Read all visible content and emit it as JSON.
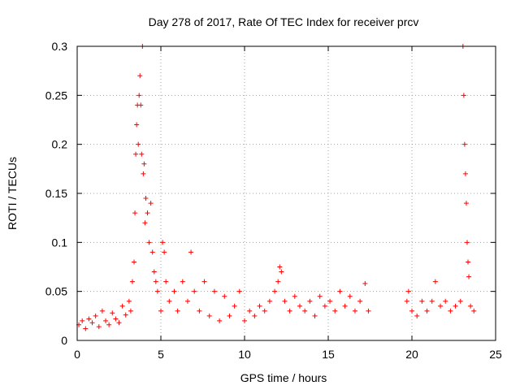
{
  "chart_data": {
    "type": "scatter",
    "title": "Day 278 of 2017, Rate Of TEC Index for receiver prcv",
    "xlabel": "GPS time / hours",
    "ylabel": "ROTI / TECUs",
    "xlim": [
      0,
      25
    ],
    "ylim": [
      0,
      0.3
    ],
    "xticks": [
      0,
      5,
      10,
      15,
      20,
      25
    ],
    "yticks": [
      0,
      0.05,
      0.1,
      0.15,
      0.2,
      0.25,
      0.3
    ],
    "xtick_labels": [
      "0",
      "5",
      "10",
      "15",
      "20",
      "25"
    ],
    "ytick_labels": [
      "0",
      "0.05",
      "0.1",
      "0.15",
      "0.2",
      "0.25",
      "0.3"
    ],
    "grid": true,
    "marker": "+",
    "color": "#ff0000",
    "series": [
      {
        "name": "ROTI",
        "points": [
          [
            0.1,
            0.016
          ],
          [
            0.3,
            0.02
          ],
          [
            0.5,
            0.012
          ],
          [
            0.7,
            0.022
          ],
          [
            0.9,
            0.018
          ],
          [
            1.1,
            0.025
          ],
          [
            1.3,
            0.014
          ],
          [
            1.5,
            0.03
          ],
          [
            1.7,
            0.02
          ],
          [
            1.9,
            0.016
          ],
          [
            2.1,
            0.028
          ],
          [
            2.3,
            0.022
          ],
          [
            2.5,
            0.018
          ],
          [
            2.7,
            0.035
          ],
          [
            2.9,
            0.026
          ],
          [
            3.1,
            0.04
          ],
          [
            3.2,
            0.03
          ],
          [
            3.3,
            0.06
          ],
          [
            3.4,
            0.08
          ],
          [
            3.45,
            0.13
          ],
          [
            3.5,
            0.19
          ],
          [
            3.55,
            0.22
          ],
          [
            3.6,
            0.24
          ],
          [
            3.65,
            0.2
          ],
          [
            3.7,
            0.25
          ],
          [
            3.75,
            0.27
          ],
          [
            3.8,
            0.24
          ],
          [
            3.85,
            0.19
          ],
          [
            3.9,
            0.3
          ],
          [
            3.95,
            0.17
          ],
          [
            4.0,
            0.18
          ],
          [
            4.05,
            0.12
          ],
          [
            4.1,
            0.145
          ],
          [
            4.2,
            0.13
          ],
          [
            4.3,
            0.1
          ],
          [
            4.4,
            0.14
          ],
          [
            4.5,
            0.09
          ],
          [
            4.6,
            0.07
          ],
          [
            4.7,
            0.06
          ],
          [
            4.8,
            0.05
          ],
          [
            5.0,
            0.03
          ],
          [
            5.1,
            0.1
          ],
          [
            5.2,
            0.09
          ],
          [
            5.3,
            0.06
          ],
          [
            5.5,
            0.04
          ],
          [
            5.8,
            0.05
          ],
          [
            6.0,
            0.03
          ],
          [
            6.3,
            0.06
          ],
          [
            6.6,
            0.04
          ],
          [
            6.8,
            0.09
          ],
          [
            7.0,
            0.05
          ],
          [
            7.3,
            0.03
          ],
          [
            7.6,
            0.06
          ],
          [
            7.9,
            0.025
          ],
          [
            8.2,
            0.05
          ],
          [
            8.5,
            0.02
          ],
          [
            8.8,
            0.045
          ],
          [
            9.1,
            0.025
          ],
          [
            9.4,
            0.035
          ],
          [
            9.7,
            0.05
          ],
          [
            10.0,
            0.02
          ],
          [
            10.3,
            0.03
          ],
          [
            10.6,
            0.025
          ],
          [
            10.9,
            0.035
          ],
          [
            11.2,
            0.03
          ],
          [
            11.5,
            0.04
          ],
          [
            11.8,
            0.05
          ],
          [
            12.0,
            0.06
          ],
          [
            12.1,
            0.075
          ],
          [
            12.2,
            0.07
          ],
          [
            12.4,
            0.04
          ],
          [
            12.7,
            0.03
          ],
          [
            13.0,
            0.045
          ],
          [
            13.3,
            0.035
          ],
          [
            13.6,
            0.03
          ],
          [
            13.9,
            0.04
          ],
          [
            14.2,
            0.025
          ],
          [
            14.5,
            0.045
          ],
          [
            14.8,
            0.035
          ],
          [
            15.1,
            0.04
          ],
          [
            15.4,
            0.03
          ],
          [
            15.7,
            0.05
          ],
          [
            16.0,
            0.035
          ],
          [
            16.3,
            0.045
          ],
          [
            16.6,
            0.03
          ],
          [
            16.9,
            0.04
          ],
          [
            17.2,
            0.058
          ],
          [
            17.4,
            0.03
          ],
          [
            19.7,
            0.04
          ],
          [
            19.8,
            0.05
          ],
          [
            20.0,
            0.03
          ],
          [
            20.3,
            0.025
          ],
          [
            20.6,
            0.04
          ],
          [
            20.9,
            0.03
          ],
          [
            21.2,
            0.04
          ],
          [
            21.4,
            0.06
          ],
          [
            21.7,
            0.035
          ],
          [
            22.0,
            0.04
          ],
          [
            22.3,
            0.03
          ],
          [
            22.6,
            0.035
          ],
          [
            22.9,
            0.04
          ],
          [
            23.05,
            0.3
          ],
          [
            23.1,
            0.25
          ],
          [
            23.15,
            0.2
          ],
          [
            23.2,
            0.17
          ],
          [
            23.25,
            0.14
          ],
          [
            23.3,
            0.1
          ],
          [
            23.35,
            0.08
          ],
          [
            23.4,
            0.065
          ],
          [
            23.5,
            0.035
          ],
          [
            23.7,
            0.03
          ]
        ]
      }
    ]
  }
}
